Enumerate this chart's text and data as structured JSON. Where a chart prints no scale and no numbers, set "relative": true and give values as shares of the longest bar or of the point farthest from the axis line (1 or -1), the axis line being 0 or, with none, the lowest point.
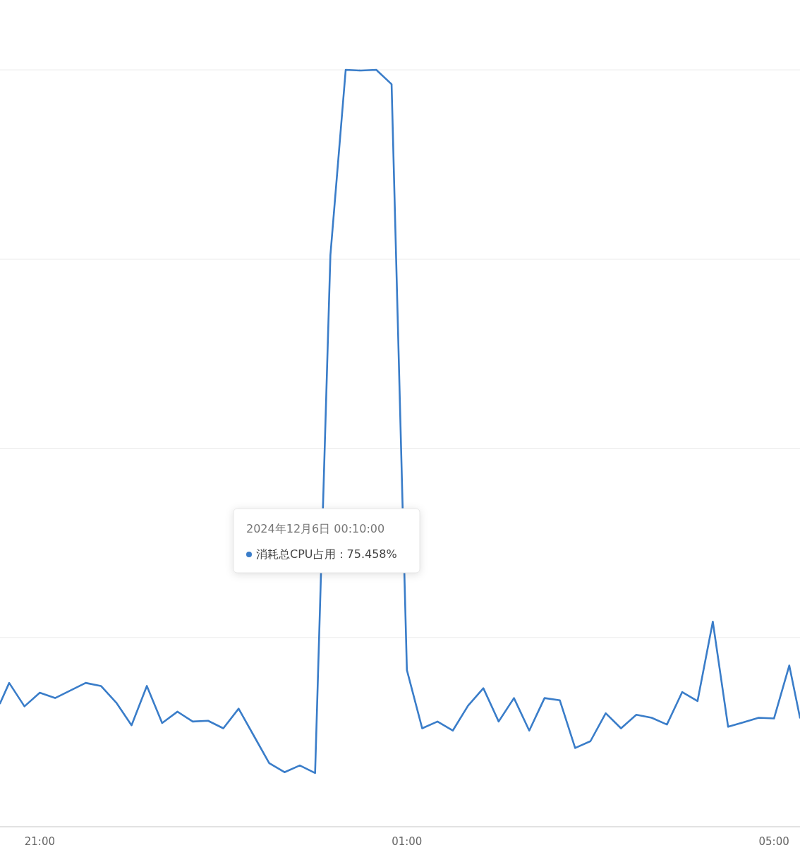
{
  "chart_data": {
    "type": "line",
    "relative": true,
    "grid": "y",
    "marker": "none",
    "line_style": "solid",
    "xlim": [
      "2024-12-05T20:34",
      "2024-12-06T05:17"
    ],
    "xticks": [
      {
        "value": "2024-12-05T21:00",
        "label": "21:00"
      },
      {
        "value": "2024-12-06T01:00",
        "label": "01:00"
      },
      {
        "value": "2024-12-06T05:00",
        "label": "05:00"
      }
    ],
    "series": [
      {
        "color": "#3a7dc9",
        "x": [
          "2024-12-05T20:34",
          "2024-12-05T20:40",
          "2024-12-05T20:50",
          "2024-12-05T21:00",
          "2024-12-05T21:10",
          "2024-12-05T21:20",
          "2024-12-05T21:30",
          "2024-12-05T21:40",
          "2024-12-05T21:50",
          "2024-12-05T22:00",
          "2024-12-05T22:10",
          "2024-12-05T22:20",
          "2024-12-05T22:30",
          "2024-12-05T22:40",
          "2024-12-05T22:50",
          "2024-12-05T23:00",
          "2024-12-05T23:10",
          "2024-12-05T23:20",
          "2024-12-05T23:30",
          "2024-12-05T23:40",
          "2024-12-05T23:50",
          "2024-12-06T00:00",
          "2024-12-06T00:10",
          "2024-12-06T00:20",
          "2024-12-06T00:30",
          "2024-12-06T00:40",
          "2024-12-06T00:50",
          "2024-12-06T01:00",
          "2024-12-06T01:10",
          "2024-12-06T01:20",
          "2024-12-06T01:30",
          "2024-12-06T01:40",
          "2024-12-06T01:50",
          "2024-12-06T02:00",
          "2024-12-06T02:10",
          "2024-12-06T02:20",
          "2024-12-06T02:30",
          "2024-12-06T02:40",
          "2024-12-06T02:50",
          "2024-12-06T03:00",
          "2024-12-06T03:10",
          "2024-12-06T03:20",
          "2024-12-06T03:30",
          "2024-12-06T03:40",
          "2024-12-06T03:50",
          "2024-12-06T04:00",
          "2024-12-06T04:10",
          "2024-12-06T04:20",
          "2024-12-06T04:30",
          "2024-12-06T04:40",
          "2024-12-06T04:50",
          "2024-12-06T05:00",
          "2024-12-06T05:10",
          "2024-12-06T05:17"
        ],
        "values": [
          0.163,
          0.19,
          0.159,
          0.177,
          0.17,
          0.18,
          0.19,
          0.186,
          0.164,
          0.134,
          0.186,
          0.137,
          0.152,
          0.139,
          0.14,
          0.13,
          0.156,
          0.12,
          0.084,
          0.072,
          0.081,
          0.071,
          0.755,
          1.0,
          0.999,
          1.0,
          0.981,
          0.207,
          0.13,
          0.139,
          0.127,
          0.16,
          0.183,
          0.139,
          0.17,
          0.127,
          0.17,
          0.167,
          0.104,
          0.113,
          0.15,
          0.13,
          0.148,
          0.144,
          0.135,
          0.178,
          0.166,
          0.271,
          0.132,
          0.138,
          0.144,
          0.143,
          0.213,
          0.144
        ]
      }
    ],
    "annotations": [
      "2024年12月6日 00:10:00",
      "消耗总CPU占用：75.458%"
    ]
  }
}
